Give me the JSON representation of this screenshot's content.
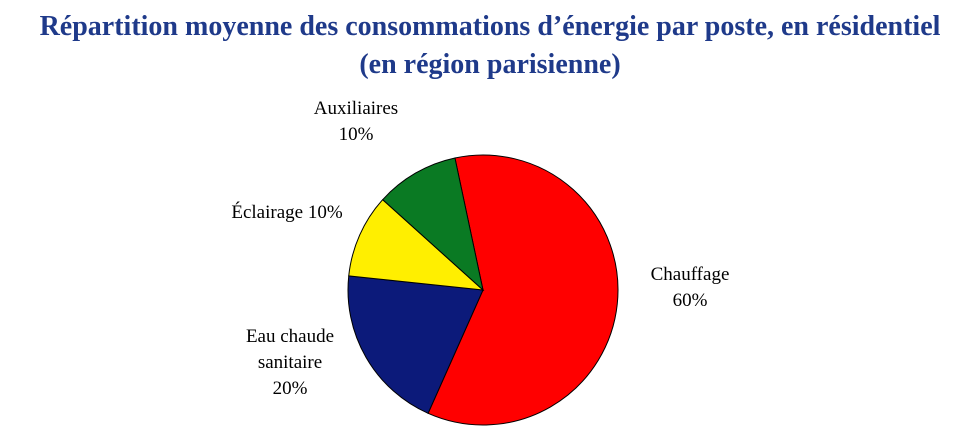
{
  "chart_data": {
    "type": "pie",
    "title_lines": [
      "Répartition moyenne des consommations d’énergie par poste, en résidentiel",
      "(en région parisienne)"
    ],
    "slices": [
      {
        "name": "Chauffage",
        "value": 60,
        "label_lines": [
          "Chauffage",
          "60%"
        ],
        "color": "#ff0000"
      },
      {
        "name": "Eau chaude sanitaire",
        "value": 20,
        "label_lines": [
          "Eau chaude",
          "sanitaire",
          "20%"
        ],
        "color": "#0c1a7a"
      },
      {
        "name": "Éclairage",
        "value": 10,
        "label_lines": [
          "Éclairage 10%"
        ],
        "color": "#ffef00"
      },
      {
        "name": "Auxiliaires",
        "value": 10,
        "label_lines": [
          "Auxiliaires",
          "10%"
        ],
        "color": "#0a7a23"
      }
    ],
    "legend": "none"
  },
  "colors": {
    "title": "#1f3a8a",
    "slice_border": "#000000"
  }
}
